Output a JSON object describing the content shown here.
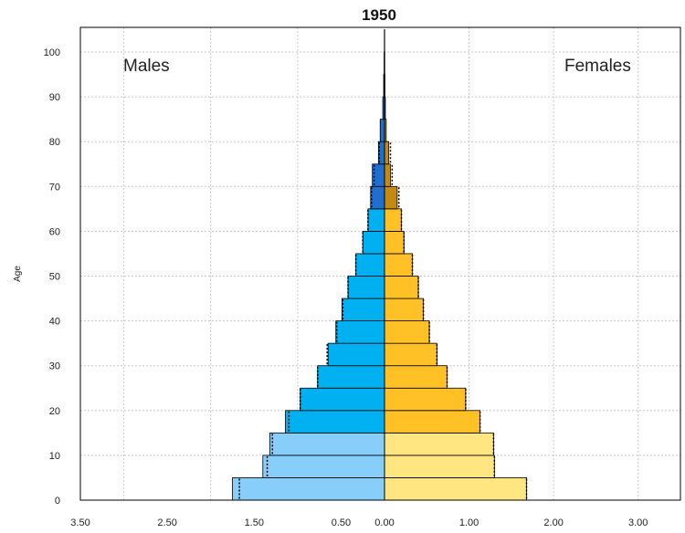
{
  "chart_data": {
    "type": "bar",
    "title": "1950",
    "ylabel": "Age",
    "xlabel": "",
    "sex_labels": {
      "left": "Males",
      "right": "Females"
    },
    "x_ticks": [
      "3.50",
      "2.50",
      "1.50",
      "0.50",
      "0.00",
      "1.00",
      "2.00",
      "3.00"
    ],
    "y_ticks": [
      "0",
      "10",
      "20",
      "30",
      "40",
      "50",
      "60",
      "70",
      "80",
      "90",
      "100"
    ],
    "xlim_males": [
      0,
      3.5
    ],
    "xlim_females": [
      0,
      3.5
    ],
    "ylim": [
      0,
      100
    ],
    "grid": true,
    "age_groups": [
      "0-4",
      "5-9",
      "10-14",
      "15-19",
      "20-24",
      "25-29",
      "30-34",
      "35-39",
      "40-44",
      "45-49",
      "50-54",
      "55-59",
      "60-64",
      "65-69",
      "70-74",
      "75-79",
      "80-84",
      "85-89",
      "90-94",
      "95-99",
      "100+"
    ],
    "series": [
      {
        "name": "Males",
        "values": [
          1.75,
          1.4,
          1.32,
          1.14,
          0.97,
          0.77,
          0.65,
          0.56,
          0.49,
          0.42,
          0.33,
          0.25,
          0.19,
          0.16,
          0.14,
          0.07,
          0.05,
          0.02,
          0.01,
          0.005,
          0.002
        ],
        "reference_values": [
          1.67,
          1.35,
          1.29,
          1.1,
          0.97,
          0.77,
          0.66,
          0.55,
          0.48,
          0.42,
          0.33,
          0.25,
          0.19,
          0.15,
          0.12,
          0.06,
          0.05,
          0.02,
          0.01,
          0.005,
          0.002
        ],
        "colors": [
          "#87cefa",
          "#87cefa",
          "#87cefa",
          "#00b0f0",
          "#00b0f0",
          "#00b0f0",
          "#00b0f0",
          "#00b0f0",
          "#00b0f0",
          "#00b0f0",
          "#00b0f0",
          "#00b0f0",
          "#00b0f0",
          "#1e6fd0",
          "#1e6fd0",
          "#1e6fd0",
          "#1e6fd0",
          "#1e6fd0",
          "#1e6fd0",
          "#1e6fd0",
          "#1e6fd0"
        ]
      },
      {
        "name": "Females",
        "values": [
          1.68,
          1.3,
          1.29,
          1.13,
          0.96,
          0.74,
          0.62,
          0.53,
          0.46,
          0.4,
          0.33,
          0.23,
          0.2,
          0.15,
          0.07,
          0.05,
          0.02,
          0.01,
          0.005,
          0.003,
          0.002
        ],
        "reference_values": [
          1.68,
          1.3,
          1.29,
          1.13,
          0.96,
          0.74,
          0.62,
          0.53,
          0.46,
          0.4,
          0.33,
          0.23,
          0.2,
          0.17,
          0.09,
          0.07,
          0.03,
          0.01,
          0.005,
          0.003,
          0.002
        ],
        "colors": [
          "#ffe680",
          "#ffe680",
          "#ffe680",
          "#ffc125",
          "#ffc125",
          "#ffc125",
          "#ffc125",
          "#ffc125",
          "#ffc125",
          "#ffc125",
          "#ffc125",
          "#ffc125",
          "#ffc125",
          "#c48a10",
          "#c48a10",
          "#c48a10",
          "#c48a10",
          "#c48a10",
          "#c48a10",
          "#c48a10",
          "#c48a10"
        ]
      }
    ]
  }
}
